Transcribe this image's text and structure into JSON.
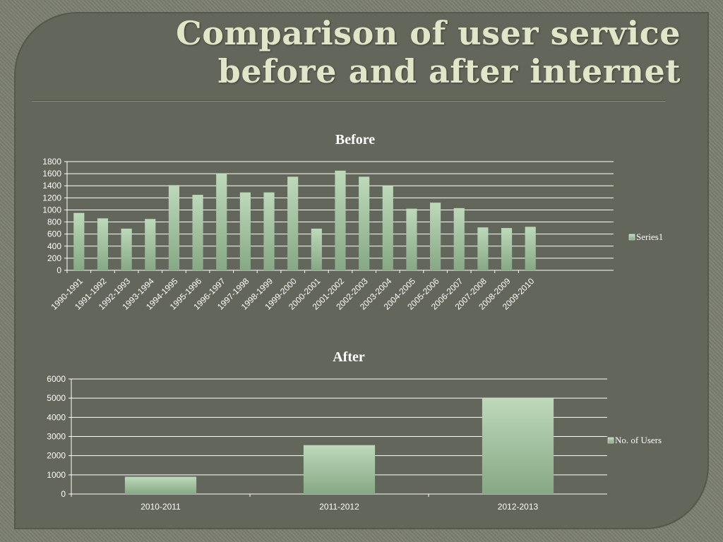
{
  "slide": {
    "title_line1": "Comparison of user service",
    "title_line2": "before and after internet"
  },
  "colors": {
    "bar_top": "#bdd9ba",
    "bar_bottom": "#86a884",
    "grid": "#ffffff",
    "text": "#ffffff"
  },
  "chart_data": [
    {
      "type": "bar",
      "title": "Before",
      "categories": [
        "1990-1991",
        "1991-1992",
        "1992-1993",
        "1993-1994",
        "1994-1995",
        "1995-1996",
        "1996-1997",
        "1997-1998",
        "1998-1999",
        "1999-2000",
        "2000-2001",
        "2001-2002",
        "2002-2003",
        "2003-2004",
        "2004-2005",
        "2005-2006",
        "2006-2007",
        "2007-2008",
        "2008-2009",
        "2009-2010"
      ],
      "series": [
        {
          "name": "Series1",
          "values": [
            950,
            860,
            690,
            850,
            1410,
            1250,
            1600,
            1290,
            1290,
            1550,
            690,
            1650,
            1550,
            1400,
            1020,
            1120,
            1030,
            710,
            700,
            720
          ]
        }
      ],
      "ylim": [
        0,
        1800
      ],
      "yticks": [
        0,
        200,
        400,
        600,
        800,
        1000,
        1200,
        1400,
        1600,
        1800
      ],
      "grid": true,
      "legend_position": "right"
    },
    {
      "type": "bar",
      "title": "After",
      "categories": [
        "2010-2011",
        "2011-2012",
        "2012-2013"
      ],
      "series": [
        {
          "name": "No. of Users",
          "values": [
            900,
            2550,
            5000
          ]
        }
      ],
      "ylim": [
        0,
        6000
      ],
      "yticks": [
        0,
        1000,
        2000,
        3000,
        4000,
        5000,
        6000
      ],
      "grid": true,
      "legend_position": "right"
    }
  ]
}
